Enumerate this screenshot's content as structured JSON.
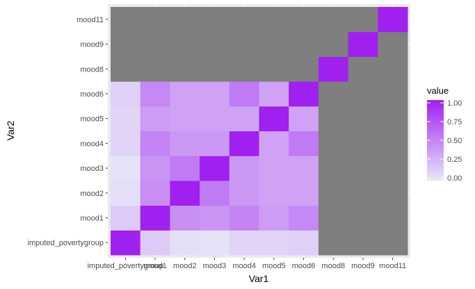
{
  "chart_data": {
    "type": "heatmap",
    "xlabel": "Var1",
    "ylabel": "Var2",
    "categories": [
      "imputed_povertygroup",
      "mood1",
      "mood2",
      "mood3",
      "mood4",
      "mood5",
      "mood6",
      "mood8",
      "mood9",
      "mood11"
    ],
    "legend": {
      "title": "value",
      "position": "right",
      "ticks": [
        1.0,
        0.75,
        0.5,
        0.25,
        0.0
      ],
      "tick_labels": [
        "1.00",
        "0.75",
        "0.50",
        "0.25",
        "0.00"
      ],
      "range": [
        0,
        1
      ]
    },
    "colors": {
      "low": "#e8e8f8",
      "high": "#a020f0",
      "na": "#7f7f7f",
      "panel_background": "#ebebeb",
      "grid": "#ffffff"
    },
    "values": [
      [
        1.0,
        0.15,
        0.05,
        0.03,
        0.1,
        0.1,
        0.12,
        null,
        null,
        null
      ],
      [
        0.15,
        1.0,
        0.45,
        0.42,
        0.5,
        0.38,
        0.48,
        null,
        null,
        null
      ],
      [
        0.05,
        0.45,
        1.0,
        0.55,
        0.4,
        0.35,
        0.35,
        null,
        null,
        null
      ],
      [
        0.03,
        0.42,
        0.55,
        1.0,
        0.4,
        0.35,
        0.35,
        null,
        null,
        null
      ],
      [
        0.1,
        0.5,
        0.4,
        0.4,
        1.0,
        0.35,
        0.55,
        null,
        null,
        null
      ],
      [
        0.1,
        0.38,
        0.35,
        0.35,
        0.35,
        1.0,
        0.35,
        null,
        null,
        null
      ],
      [
        0.12,
        0.48,
        0.35,
        0.35,
        0.55,
        0.35,
        1.0,
        null,
        null,
        null
      ],
      [
        null,
        null,
        null,
        null,
        null,
        null,
        null,
        1.0,
        null,
        null
      ],
      [
        null,
        null,
        null,
        null,
        null,
        null,
        null,
        null,
        1.0,
        null
      ],
      [
        null,
        null,
        null,
        null,
        null,
        null,
        null,
        null,
        null,
        1.0
      ]
    ]
  }
}
